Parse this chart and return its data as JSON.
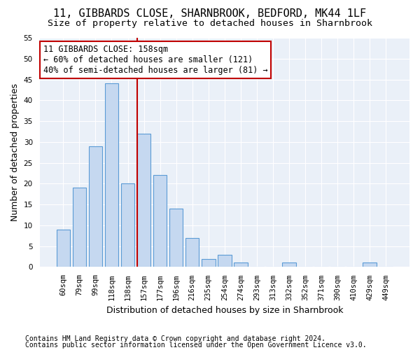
{
  "title1": "11, GIBBARDS CLOSE, SHARNBROOK, BEDFORD, MK44 1LF",
  "title2": "Size of property relative to detached houses in Sharnbrook",
  "xlabel": "Distribution of detached houses by size in Sharnbrook",
  "ylabel": "Number of detached properties",
  "categories": [
    "60sqm",
    "79sqm",
    "99sqm",
    "118sqm",
    "138sqm",
    "157sqm",
    "177sqm",
    "196sqm",
    "216sqm",
    "235sqm",
    "254sqm",
    "274sqm",
    "293sqm",
    "313sqm",
    "332sqm",
    "352sqm",
    "371sqm",
    "390sqm",
    "410sqm",
    "429sqm",
    "449sqm"
  ],
  "values": [
    9,
    19,
    29,
    44,
    20,
    32,
    22,
    14,
    7,
    2,
    3,
    1,
    0,
    0,
    1,
    0,
    0,
    0,
    0,
    1,
    0
  ],
  "bar_color": "#c5d8f0",
  "bar_edge_color": "#5b9bd5",
  "vline_x_index": 5,
  "vline_color": "#c00000",
  "annotation_line1": "11 GIBBARDS CLOSE: 158sqm",
  "annotation_line2": "← 60% of detached houses are smaller (121)",
  "annotation_line3": "40% of semi-detached houses are larger (81) →",
  "annotation_box_color": "#c00000",
  "ylim": [
    0,
    55
  ],
  "yticks": [
    0,
    5,
    10,
    15,
    20,
    25,
    30,
    35,
    40,
    45,
    50,
    55
  ],
  "footer1": "Contains HM Land Registry data © Crown copyright and database right 2024.",
  "footer2": "Contains public sector information licensed under the Open Government Licence v3.0.",
  "bg_color": "#eaf0f8",
  "grid_color": "#ffffff",
  "title1_fontsize": 11,
  "title2_fontsize": 9.5,
  "xlabel_fontsize": 9,
  "ylabel_fontsize": 9,
  "tick_fontsize": 7.5,
  "footer_fontsize": 7,
  "annotation_fontsize": 8.5
}
